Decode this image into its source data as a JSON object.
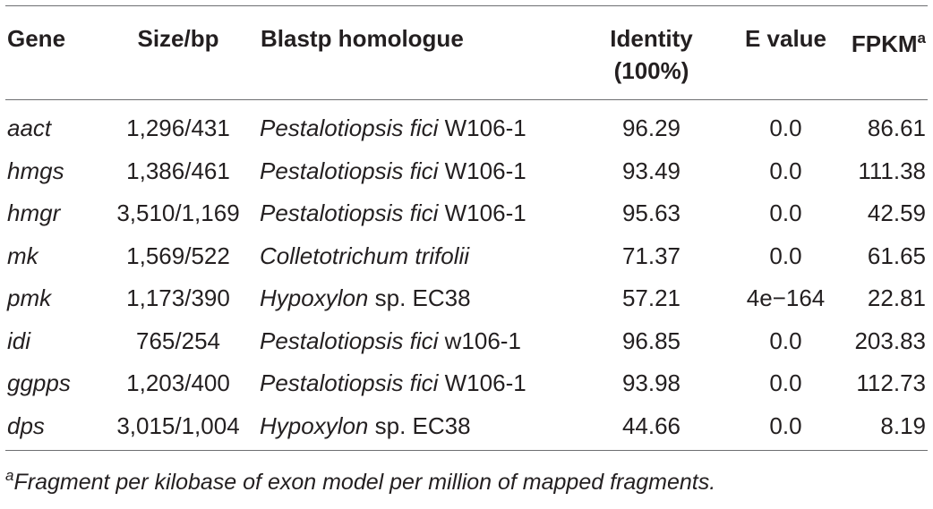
{
  "table": {
    "headers": {
      "gene": "Gene",
      "size": "Size/bp",
      "homologue": "Blastp homologue",
      "identity_line1": "Identity",
      "identity_line2": "(100%)",
      "evalue": "E value",
      "fpkm": "FPKM",
      "fpkm_sup": "a"
    },
    "rows": [
      {
        "gene": "aact",
        "size": "1,296/431",
        "species": "Pestalotiopsis fici",
        "strain": " W106-1",
        "identity": "96.29",
        "evalue": "0.0",
        "fpkm": "86.61"
      },
      {
        "gene": "hmgs",
        "size": "1,386/461",
        "species": "Pestalotiopsis fici",
        "strain": " W106-1",
        "identity": "93.49",
        "evalue": "0.0",
        "fpkm": "111.38"
      },
      {
        "gene": "hmgr",
        "size": "3,510/1,169",
        "species": "Pestalotiopsis fici",
        "strain": " W106-1",
        "identity": "95.63",
        "evalue": "0.0",
        "fpkm": "42.59"
      },
      {
        "gene": "mk",
        "size": "1,569/522",
        "species": "Colletotrichum trifolii",
        "strain": "",
        "identity": "71.37",
        "evalue": "0.0",
        "fpkm": "61.65"
      },
      {
        "gene": "pmk",
        "size": "1,173/390",
        "species": "Hypoxylon",
        "strain": " sp. EC38",
        "identity": "57.21",
        "evalue": "4e−164",
        "fpkm": "22.81"
      },
      {
        "gene": "idi",
        "size": "765/254",
        "species": "Pestalotiopsis fici",
        "strain": " w106-1",
        "identity": "96.85",
        "evalue": "0.0",
        "fpkm": "203.83"
      },
      {
        "gene": "ggpps",
        "size": "1,203/400",
        "species": "Pestalotiopsis fici",
        "strain": " W106-1",
        "identity": "93.98",
        "evalue": "0.0",
        "fpkm": "112.73"
      },
      {
        "gene": "dps",
        "size": "3,015/1,004",
        "species": "Hypoxylon",
        "strain": " sp. EC38",
        "identity": "44.66",
        "evalue": "0.0",
        "fpkm": "8.19"
      }
    ]
  },
  "footnote": {
    "mark": "a",
    "text": "Fragment per kilobase of exon model per million of mapped fragments."
  }
}
